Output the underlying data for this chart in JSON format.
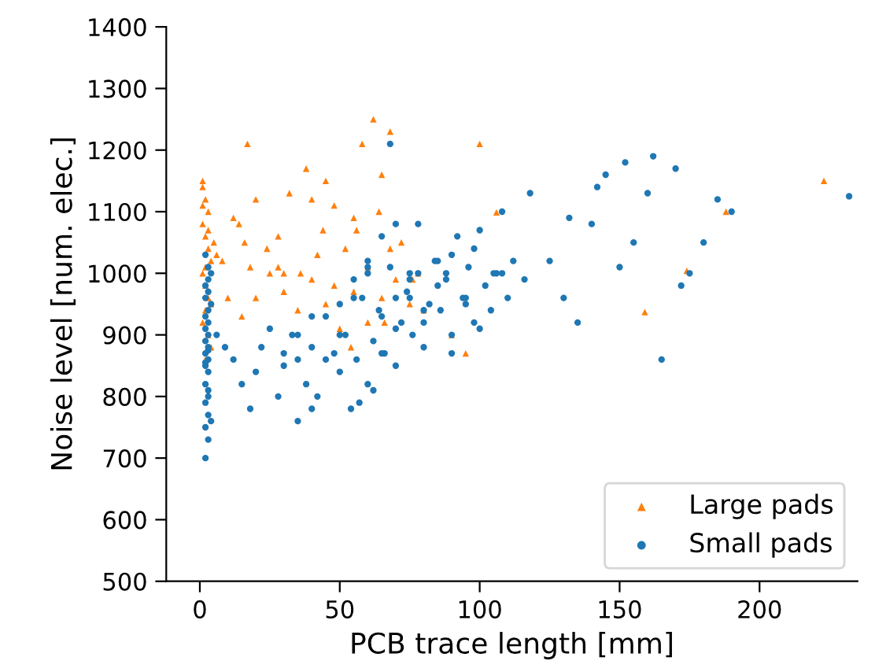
{
  "chart_data": {
    "type": "scatter",
    "xlabel": "PCB trace length [mm]",
    "ylabel": "Noise level [num. elec.]",
    "xlim": [
      -12,
      235
    ],
    "ylim": [
      500,
      1400
    ],
    "xticks": [
      0,
      50,
      100,
      150,
      200
    ],
    "yticks": [
      500,
      600,
      700,
      800,
      900,
      1000,
      1100,
      1200,
      1300,
      1400
    ],
    "legend": "bottom right",
    "grid": false,
    "series": [
      {
        "name": "Large pads",
        "color": "#ff7f0e",
        "marker": "triangle",
        "x": [
          1,
          2,
          3,
          1,
          2,
          3,
          4,
          1,
          2,
          3,
          2,
          1,
          3,
          4,
          2,
          1,
          3,
          2,
          4,
          1,
          5,
          8,
          12,
          16,
          20,
          24,
          28,
          32,
          36,
          40,
          44,
          48,
          52,
          56,
          60,
          64,
          68,
          72,
          76,
          10,
          15,
          20,
          25,
          30,
          35,
          40,
          45,
          50,
          55,
          60,
          65,
          70,
          75,
          80,
          18,
          30,
          42,
          54,
          66,
          78,
          28,
          38,
          48,
          58,
          68,
          45,
          55,
          65,
          17,
          62,
          100,
          106,
          159,
          174,
          223,
          188,
          90,
          95,
          6,
          14
        ],
        "values": [
          1150,
          1120,
          1100,
          1080,
          1060,
          1040,
          1020,
          1000,
          980,
          960,
          940,
          920,
          900,
          880,
          860,
          1140,
          1070,
          1010,
          950,
          1110,
          1050,
          1020,
          1090,
          1050,
          1120,
          1040,
          1010,
          1130,
          1000,
          1120,
          1070,
          980,
          1040,
          1070,
          1010,
          1100,
          1040,
          1050,
          990,
          960,
          930,
          960,
          1000,
          970,
          940,
          990,
          950,
          910,
          970,
          920,
          960,
          990,
          950,
          940,
          1010,
          1000,
          1030,
          880,
          920,
          1000,
          1060,
          1170,
          1110,
          1210,
          1230,
          1150,
          1090,
          1160,
          1210,
          1250,
          1210,
          1099,
          937,
          1004,
          1150,
          1100,
          900,
          870,
          1030,
          1080
        ]
      },
      {
        "name": "Small pads",
        "color": "#1f77b4",
        "marker": "circle",
        "x": [
          2,
          3,
          2,
          3,
          2,
          3,
          2,
          3,
          2,
          3,
          2,
          3,
          2,
          3,
          2,
          3,
          2,
          3,
          4,
          2,
          3,
          2,
          3,
          4,
          3,
          2,
          4,
          3,
          2,
          3,
          6,
          9,
          12,
          15,
          18,
          20,
          22,
          25,
          28,
          30,
          33,
          35,
          38,
          40,
          42,
          45,
          48,
          50,
          52,
          54,
          56,
          58,
          60,
          62,
          64,
          66,
          68,
          70,
          72,
          74,
          76,
          78,
          80,
          82,
          84,
          86,
          88,
          90,
          92,
          94,
          96,
          98,
          100,
          102,
          104,
          106,
          108,
          110,
          112,
          116,
          50,
          55,
          60,
          65,
          70,
          75,
          80,
          85,
          90,
          95,
          60,
          65,
          70,
          75,
          80,
          85,
          90,
          95,
          100,
          105,
          30,
          35,
          40,
          45,
          50,
          55,
          60,
          65,
          70,
          75,
          68,
          78,
          88,
          98,
          108,
          118,
          125,
          130,
          135,
          140,
          145,
          150,
          155,
          160,
          165,
          170,
          175,
          180,
          185,
          190,
          232,
          40,
          35,
          57,
          62,
          132,
          142,
          152,
          162,
          172
        ],
        "values": [
          700,
          730,
          750,
          770,
          790,
          800,
          820,
          840,
          850,
          860,
          870,
          880,
          890,
          900,
          910,
          920,
          930,
          940,
          950,
          960,
          970,
          980,
          990,
          1000,
          1010,
          1030,
          760,
          810,
          855,
          875,
          900,
          880,
          860,
          820,
          780,
          840,
          880,
          910,
          800,
          850,
          900,
          860,
          820,
          880,
          800,
          930,
          870,
          840,
          900,
          780,
          860,
          960,
          820,
          890,
          940,
          870,
          1010,
          850,
          920,
          970,
          900,
          1000,
          880,
          950,
          1020,
          940,
          990,
          900,
          1060,
          960,
          1010,
          920,
          1070,
          980,
          940,
          1000,
          1100,
          960,
          1020,
          990,
          900,
          960,
          1010,
          930,
          1080,
          990,
          920,
          1020,
          870,
          950,
          1000,
          1060,
          960,
          1000,
          940,
          980,
          1030,
          960,
          910,
          1000,
          870,
          900,
          930,
          860,
          950,
          990,
          1020,
          870,
          910,
          960,
          1210,
          1080,
          1000,
          1040,
          1000,
          1130,
          1020,
          960,
          920,
          1080,
          1160,
          1010,
          1050,
          1130,
          860,
          1170,
          1000,
          1050,
          1120,
          1100,
          1125,
          780,
          760,
          790,
          810,
          1090,
          1140,
          1180,
          1190,
          980
        ]
      }
    ]
  }
}
